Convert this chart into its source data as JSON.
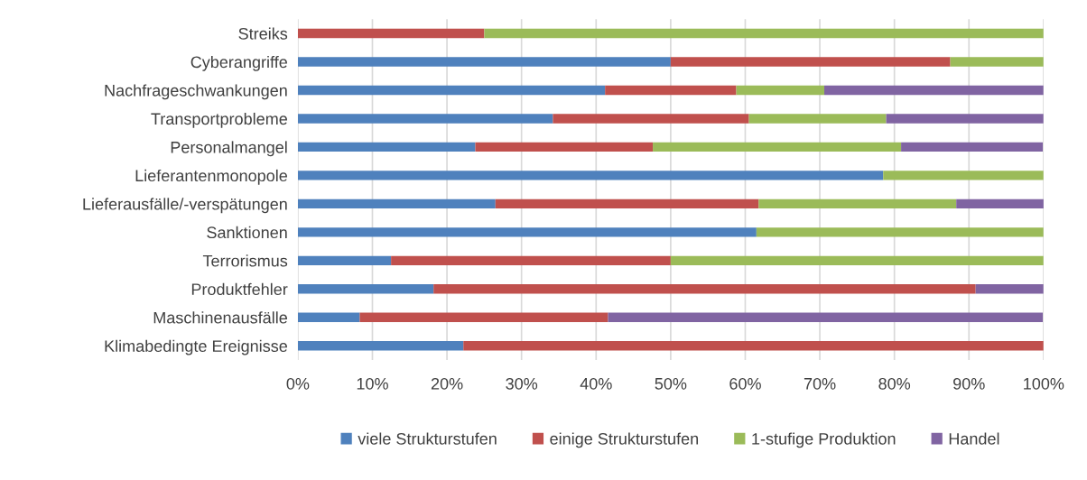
{
  "chart_data": {
    "type": "bar",
    "orientation": "horizontal",
    "stacked": true,
    "categories": [
      "Streiks",
      "Cyberangriffe",
      "Nachfrageschwankungen",
      "Transportprobleme",
      "Personalmangel",
      "Lieferantenmonopole",
      "Lieferausfälle/-verspätungen",
      "Sanktionen",
      "Terrorismus",
      "Produktfehler",
      "Maschinenausfälle",
      "Klimabedingte Ereignisse"
    ],
    "series": [
      {
        "name": "viele Strukturstufen",
        "color": "#4f81bd",
        "values": [
          null,
          50,
          41.2,
          34.2,
          23.8,
          78.5,
          26.5,
          61.5,
          12.5,
          18.2,
          8.3,
          22.2
        ]
      },
      {
        "name": "einige Strukturstufen",
        "color": "#c0504d",
        "values": [
          25,
          37.5,
          17.6,
          26.3,
          23.8,
          null,
          35.3,
          null,
          37.5,
          72.7,
          33.3,
          77.8
        ]
      },
      {
        "name": "1-stufige Produktion",
        "color": "#9bbb59",
        "values": [
          75,
          12.5,
          11.8,
          18.4,
          33.3,
          21.5,
          26.5,
          38.5,
          50,
          null,
          null,
          null
        ]
      },
      {
        "name": "Handel",
        "color": "#8064a2",
        "values": [
          null,
          null,
          29.4,
          21.1,
          19.0,
          null,
          11.8,
          null,
          null,
          9.1,
          58.3,
          null
        ]
      }
    ],
    "xlim": [
      0,
      100
    ],
    "xticks": [
      {
        "value": 0,
        "label": "0%"
      },
      {
        "value": 10,
        "label": "10%"
      },
      {
        "value": 20,
        "label": "20%"
      },
      {
        "value": 30,
        "label": "30%"
      },
      {
        "value": 40,
        "label": "40%"
      },
      {
        "value": 50,
        "label": "50%"
      },
      {
        "value": 60,
        "label": "60%"
      },
      {
        "value": 70,
        "label": "70%"
      },
      {
        "value": 80,
        "label": "80%"
      },
      {
        "value": 90,
        "label": "90%"
      },
      {
        "value": 100,
        "label": "100%"
      }
    ],
    "grid": "x",
    "legend": "bottom"
  }
}
